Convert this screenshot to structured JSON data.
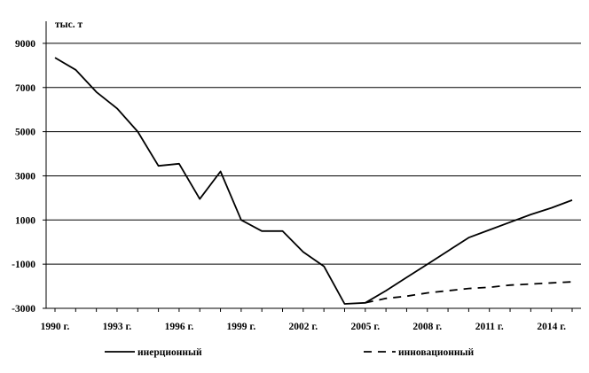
{
  "chart_data": {
    "type": "line",
    "unit_label": "тыс. т",
    "ylim": [
      -3000,
      10000
    ],
    "yticks": [
      9000,
      7000,
      5000,
      3000,
      1000,
      -1000,
      -3000
    ],
    "ytick_labels": [
      "9000",
      "7000",
      "5000",
      "3000",
      "1000",
      "-1000",
      "-3000"
    ],
    "xlim": [
      1990,
      2015
    ],
    "xticks": [
      1990,
      1993,
      1996,
      1999,
      2002,
      2005,
      2008,
      2011,
      2014
    ],
    "xtick_labels": [
      "1990 г.",
      "1993 г.",
      "1996 г.",
      "1999 г.",
      "2002 г.",
      "2005 г.",
      "2008 г.",
      "2011 г.",
      "2014 г."
    ],
    "grid": "horizontal",
    "legend_position": "bottom",
    "series": [
      {
        "name": "инерционный",
        "style": "solid",
        "color": "#000000",
        "x": [
          1990,
          1991,
          1992,
          1993,
          1994,
          1995,
          1996,
          1997,
          1998,
          1999,
          2000,
          2001,
          2002,
          2003,
          2004,
          2005,
          2006,
          2007,
          2008,
          2009,
          2010,
          2011,
          2012,
          2013,
          2014,
          2015
        ],
        "y": [
          8350,
          7800,
          6800,
          6050,
          5000,
          3450,
          3550,
          1950,
          3200,
          1000,
          500,
          500,
          -450,
          -1100,
          -2800,
          -2750,
          -2200,
          -1600,
          -1000,
          -400,
          200,
          550,
          900,
          1250,
          1550,
          1900
        ]
      },
      {
        "name": "инновационный",
        "style": "dashed",
        "color": "#000000",
        "x": [
          2005,
          2006,
          2007,
          2008,
          2009,
          2010,
          2011,
          2012,
          2013,
          2014,
          2015
        ],
        "y": [
          -2750,
          -2550,
          -2450,
          -2300,
          -2200,
          -2100,
          -2050,
          -1950,
          -1900,
          -1850,
          -1800
        ]
      }
    ]
  }
}
